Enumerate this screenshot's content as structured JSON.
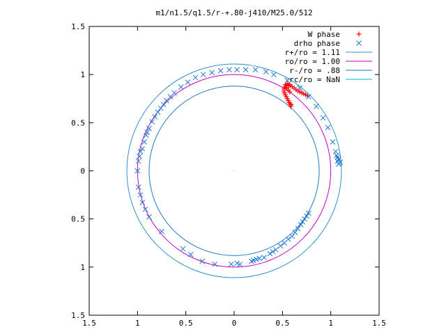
{
  "chart_data": {
    "type": "scatter",
    "title": "m1/n1.5/q1.5/r-+.80-j410/M25.0/512",
    "xlim": [
      -1.5,
      1.5
    ],
    "ylim": [
      -1.5,
      1.5
    ],
    "x_ticks": [
      -1.5,
      -1,
      -0.5,
      0,
      0.5,
      1,
      1.5
    ],
    "y_ticks": [
      -1.5,
      -1,
      -0.5,
      0,
      0.5,
      1,
      1.5
    ],
    "x_tick_labels": [
      "1.5",
      "1",
      "0.5",
      "0",
      "0.5",
      "1",
      "1.5"
    ],
    "y_tick_labels": [
      "1.5",
      "1",
      "0.5",
      "0",
      "0.5",
      "1",
      "1.5"
    ],
    "grid": false,
    "legend_position": "top-right",
    "series": [
      {
        "name": "W phase",
        "kind": "points",
        "marker": "plus",
        "color": "#ff0000",
        "points": [
          [
            0.76,
            0.78
          ],
          [
            0.74,
            0.79
          ],
          [
            0.72,
            0.8
          ],
          [
            0.7,
            0.81
          ],
          [
            0.68,
            0.82
          ],
          [
            0.66,
            0.83
          ],
          [
            0.64,
            0.845
          ],
          [
            0.62,
            0.86
          ],
          [
            0.6,
            0.875
          ],
          [
            0.58,
            0.885
          ],
          [
            0.56,
            0.89
          ],
          [
            0.54,
            0.885
          ],
          [
            0.525,
            0.87
          ],
          [
            0.515,
            0.85
          ],
          [
            0.515,
            0.83
          ],
          [
            0.52,
            0.81
          ],
          [
            0.53,
            0.79
          ],
          [
            0.54,
            0.77
          ],
          [
            0.55,
            0.75
          ],
          [
            0.56,
            0.73
          ],
          [
            0.57,
            0.71
          ],
          [
            0.58,
            0.695
          ],
          [
            0.59,
            0.685
          ],
          [
            0.585,
            0.67
          ],
          [
            0.57,
            0.9
          ],
          [
            0.55,
            0.905
          ],
          [
            0.53,
            0.895
          ],
          [
            0.545,
            0.86
          ],
          [
            0.56,
            0.84
          ],
          [
            0.575,
            0.82
          ]
        ]
      },
      {
        "name": "drho phase",
        "kind": "points",
        "marker": "cross",
        "color": "#1f77d0",
        "points": [
          [
            1.08,
            0.07
          ],
          [
            1.09,
            0.08
          ],
          [
            1.1,
            0.09
          ],
          [
            1.07,
            0.1
          ],
          [
            1.08,
            0.12
          ],
          [
            1.07,
            0.14
          ],
          [
            1.06,
            0.16
          ],
          [
            1.05,
            0.2
          ],
          [
            1.02,
            0.3
          ],
          [
            0.97,
            0.45
          ],
          [
            0.92,
            0.55
          ],
          [
            0.85,
            0.67
          ],
          [
            0.77,
            0.77
          ],
          [
            0.68,
            0.86
          ],
          [
            0.55,
            0.94
          ],
          [
            0.41,
            1.0
          ],
          [
            0.33,
            1.03
          ],
          [
            0.22,
            1.05
          ],
          [
            0.12,
            1.05
          ],
          [
            0.03,
            1.05
          ],
          [
            -0.05,
            1.05
          ],
          [
            -0.14,
            1.04
          ],
          [
            -0.23,
            1.02
          ],
          [
            -0.32,
            1.0
          ],
          [
            -0.4,
            0.97
          ],
          [
            -0.48,
            0.92
          ],
          [
            -0.55,
            0.87
          ],
          [
            -0.62,
            0.81
          ],
          [
            -0.66,
            0.77
          ],
          [
            -0.7,
            0.73
          ],
          [
            -0.73,
            0.69
          ],
          [
            -0.76,
            0.65
          ],
          [
            -0.79,
            0.61
          ],
          [
            -0.82,
            0.56
          ],
          [
            -0.85,
            0.51
          ],
          [
            -0.88,
            0.44
          ],
          [
            -0.9,
            0.4
          ],
          [
            -0.91,
            0.37
          ],
          [
            -0.93,
            0.3
          ],
          [
            -0.95,
            0.23
          ],
          [
            -0.97,
            0.2
          ],
          [
            -0.98,
            0.15
          ],
          [
            -0.99,
            0.1
          ],
          [
            -1.0,
            0.0
          ],
          [
            -0.99,
            -0.17
          ],
          [
            -0.97,
            -0.25
          ],
          [
            -0.95,
            -0.33
          ],
          [
            -0.92,
            -0.4
          ],
          [
            -0.88,
            -0.48
          ],
          [
            -0.75,
            -0.63
          ],
          [
            -0.53,
            -0.81
          ],
          [
            -0.45,
            -0.87
          ],
          [
            -0.33,
            -0.94
          ],
          [
            -0.2,
            -0.97
          ],
          [
            -0.03,
            -0.97
          ],
          [
            0.03,
            -0.96
          ],
          [
            0.06,
            -0.97
          ],
          [
            0.18,
            -0.94
          ],
          [
            0.2,
            -0.93
          ],
          [
            0.23,
            -0.92
          ],
          [
            0.26,
            -0.91
          ],
          [
            0.31,
            -0.9
          ],
          [
            0.37,
            -0.86
          ],
          [
            0.4,
            -0.84
          ],
          [
            0.43,
            -0.82
          ],
          [
            0.48,
            -0.78
          ],
          [
            0.52,
            -0.75
          ],
          [
            0.56,
            -0.71
          ],
          [
            0.6,
            -0.68
          ],
          [
            0.63,
            -0.64
          ],
          [
            0.66,
            -0.6
          ],
          [
            0.69,
            -0.56
          ],
          [
            0.71,
            -0.53
          ],
          [
            0.73,
            -0.5
          ],
          [
            0.75,
            -0.47
          ],
          [
            0.77,
            -0.44
          ]
        ]
      },
      {
        "name": "r+/ro = 1.11",
        "kind": "circle",
        "radius": 1.11,
        "color": "#2f8fc8"
      },
      {
        "name": "ro/ro = 1.00",
        "kind": "circle",
        "radius": 1.0,
        "color": "#c000c0"
      },
      {
        "name": "r-/ro = .88",
        "kind": "circle",
        "radius": 0.88,
        "color": "#1f78c0"
      },
      {
        "name": "rc/ro = NaN",
        "kind": "circle",
        "radius": null,
        "color": "#00b8d8"
      }
    ]
  }
}
